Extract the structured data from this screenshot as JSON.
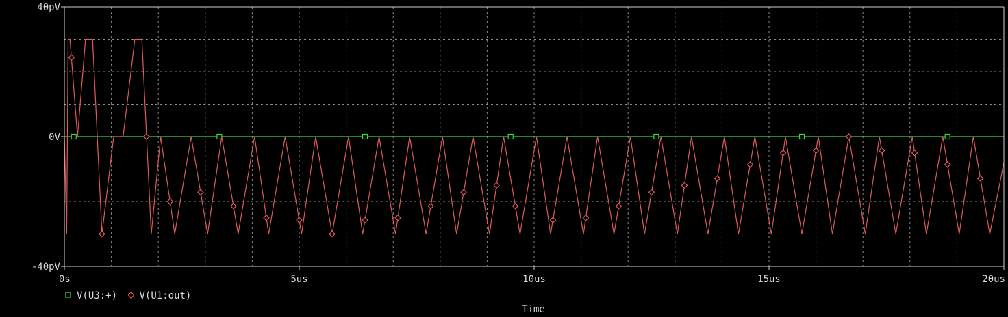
{
  "chart_data": {
    "type": "line",
    "xlabel": "Time",
    "ylabel": "",
    "xlim": [
      0,
      20
    ],
    "ylim": [
      -40,
      40
    ],
    "x_unit": "us",
    "y_unit": "pV",
    "x_ticks": [
      {
        "value": 0,
        "label": "0s"
      },
      {
        "value": 5,
        "label": "5us"
      },
      {
        "value": 10,
        "label": "10us"
      },
      {
        "value": 15,
        "label": "15us"
      },
      {
        "value": 20,
        "label": "20us"
      }
    ],
    "x_grid_step": 1,
    "y_ticks": [
      {
        "value": 40,
        "label": "40pV"
      },
      {
        "value": 0,
        "label": "0V"
      },
      {
        "value": -40,
        "label": "-40pV"
      }
    ],
    "y_grid_step": 10,
    "grid": true,
    "legend_position": "bottom-left",
    "series": [
      {
        "name": "V(U3:+)",
        "color": "#33dd33",
        "marker": "square",
        "x": [
          0,
          20
        ],
        "y": [
          0,
          0
        ],
        "marker_x": [
          0.2,
          3.3,
          6.4,
          9.5,
          12.6,
          15.7,
          18.8
        ]
      },
      {
        "name": "V(U1:out)",
        "color": "#e05a5a",
        "marker": "diamond",
        "x": [
          0,
          0.05,
          0.08,
          0.12,
          0.28,
          0.45,
          0.6,
          0.8,
          1.05,
          1.25,
          1.5,
          1.65,
          1.85,
          2.05,
          2.35,
          2.7,
          3.05,
          3.35,
          3.7,
          4.05,
          4.35,
          4.7,
          5.05,
          5.35,
          5.7,
          6.05,
          6.35,
          6.7,
          7.05,
          7.35,
          7.7,
          8.05,
          8.35,
          8.7,
          9.05,
          9.35,
          9.7,
          10.05,
          10.35,
          10.7,
          11.05,
          11.35,
          11.7,
          12.05,
          12.35,
          12.7,
          13.05,
          13.35,
          13.7,
          14.05,
          14.35,
          14.7,
          15.05,
          15.35,
          15.7,
          16.05,
          16.35,
          16.7,
          17.05,
          17.35,
          17.7,
          18.05,
          18.35,
          18.7,
          19.05,
          19.35,
          19.7,
          20.0
        ],
        "y": [
          0,
          -30,
          30,
          30,
          0,
          30,
          30,
          -30,
          0,
          0,
          30,
          30,
          -30,
          0,
          -30,
          0,
          -30,
          0,
          -30,
          0,
          -30,
          0,
          -30,
          0,
          -30,
          0,
          -30,
          0,
          -30,
          0,
          -30,
          0,
          -30,
          0,
          -30,
          0,
          -30,
          0,
          -30,
          0,
          -30,
          0,
          -30,
          0,
          -30,
          0,
          -30,
          0,
          -30,
          0,
          -30,
          0,
          -30,
          0,
          -30,
          0,
          -30,
          0,
          -30,
          0,
          -30,
          0,
          -30,
          0,
          -30,
          0,
          -30,
          -8
        ],
        "marker_x": [
          0.15,
          0.8,
          1.75,
          2.25,
          2.9,
          3.6,
          4.3,
          5.0,
          5.7,
          6.4,
          7.1,
          7.8,
          8.5,
          9.2,
          9.6,
          10.4,
          11.1,
          11.8,
          12.5,
          13.2,
          13.9,
          14.6,
          15.3,
          16.0,
          16.7,
          17.4,
          18.1,
          18.8,
          19.5
        ]
      }
    ]
  }
}
